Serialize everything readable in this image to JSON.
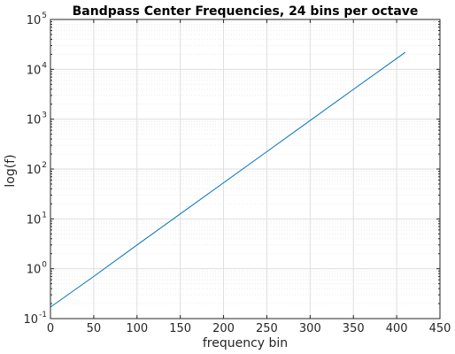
{
  "chart_data": {
    "type": "line",
    "title": "Bandpass Center Frequencies, 24 bins per octave",
    "xlabel": "frequency bin",
    "ylabel": "log(f)",
    "xlim": [
      0,
      450
    ],
    "ylim": [
      0.1,
      100000
    ],
    "yscale": "log",
    "grid": true,
    "minor_grid": true,
    "x_ticks": [
      0,
      50,
      100,
      150,
      200,
      250,
      300,
      350,
      400,
      450
    ],
    "x_tick_labels": [
      "0",
      "50",
      "100",
      "150",
      "200",
      "250",
      "300",
      "350",
      "400",
      "450"
    ],
    "y_ticks": [
      0.1,
      1,
      10,
      100,
      1000,
      10000,
      100000
    ],
    "y_tick_labels": [
      {
        "base": "10",
        "exp": "-1"
      },
      {
        "base": "10",
        "exp": "0"
      },
      {
        "base": "10",
        "exp": "1"
      },
      {
        "base": "10",
        "exp": "2"
      },
      {
        "base": "10",
        "exp": "3"
      },
      {
        "base": "10",
        "exp": "4"
      },
      {
        "base": "10",
        "exp": "5"
      }
    ],
    "series": [
      {
        "color": "#0072bd",
        "x": [
          0,
          50,
          100,
          150,
          200,
          250,
          300,
          350,
          410
        ],
        "y": [
          0.17,
          0.7,
          3.0,
          12.6,
          53,
          223,
          940,
          3960,
          22000
        ]
      }
    ]
  },
  "colors": {
    "axis": "#262626",
    "grid": "#dedede",
    "minor_grid": "#ececec",
    "line": "#0072bd"
  }
}
